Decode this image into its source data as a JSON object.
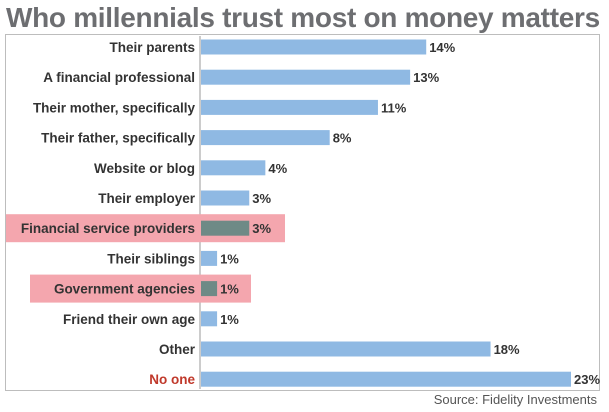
{
  "chart_data": {
    "type": "bar",
    "orientation": "horizontal",
    "title": "Who millennials trust most on money matters",
    "source": "Source: Fidelity Investments",
    "categories": [
      "Their parents",
      "A financial professional",
      "Their mother, specifically",
      "Their father, specifically",
      "Website or blog",
      "Their employer",
      "Financial service providers",
      "Their siblings",
      "Government agencies",
      "Friend their own age",
      "Other",
      "No one"
    ],
    "values": [
      14,
      13,
      11,
      8,
      4,
      3,
      3,
      1,
      1,
      1,
      18,
      23
    ],
    "value_labels": [
      "14%",
      "13%",
      "11%",
      "8%",
      "4%",
      "3%",
      "3%",
      "1%",
      "1%",
      "1%",
      "18%",
      "23%"
    ],
    "highlighted": [
      "Financial service providers",
      "Government agencies"
    ],
    "emphasized_label": "No one",
    "xlim": [
      0,
      23
    ],
    "grid": false,
    "legend": "none",
    "colors": {
      "bar": "#8fb9e3",
      "bar_highlighted": "#6e8a86",
      "highlight_box": "#f4a6ae",
      "title": "#6d6e71",
      "emphasis_label": "#c0392b"
    }
  }
}
